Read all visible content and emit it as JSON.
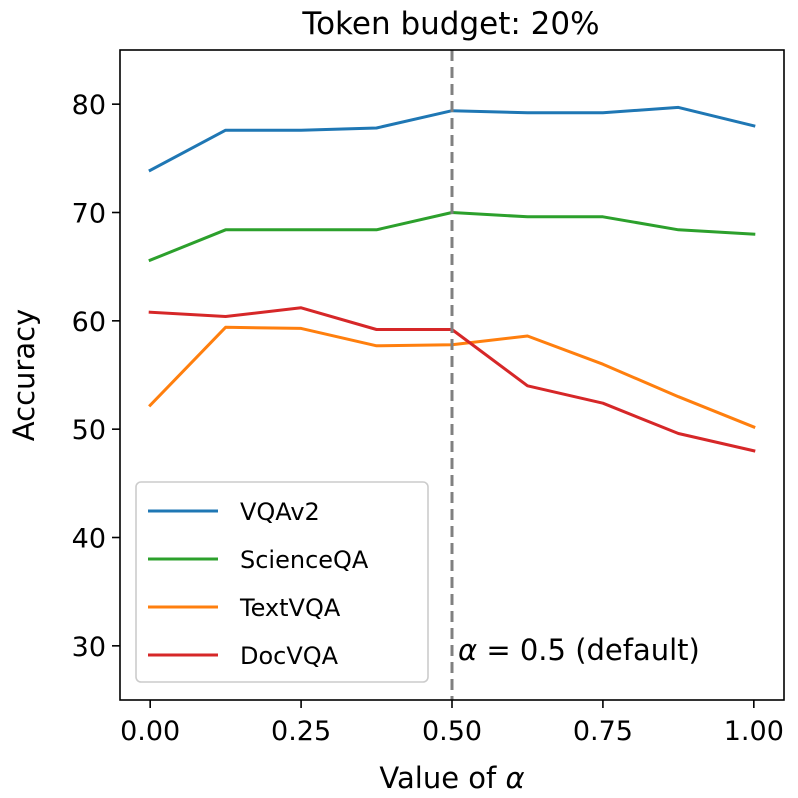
{
  "chart_data": {
    "type": "line",
    "title": "Token budget: 20%",
    "xlabel": "Value of α",
    "ylabel": "Accuracy",
    "x": [
      0.0,
      0.125,
      0.25,
      0.375,
      0.5,
      0.625,
      0.75,
      0.875,
      1.0
    ],
    "xlim": [
      -0.05,
      1.05
    ],
    "ylim": [
      25,
      85
    ],
    "xticks": [
      0.0,
      0.25,
      0.5,
      0.75,
      1.0
    ],
    "xtick_labels": [
      "0.00",
      "0.25",
      "0.50",
      "0.75",
      "1.00"
    ],
    "yticks": [
      30,
      40,
      50,
      60,
      70,
      80
    ],
    "ytick_labels": [
      "30",
      "40",
      "50",
      "60",
      "70",
      "80"
    ],
    "grid": false,
    "legend_position": "lower-left",
    "series": [
      {
        "name": "VQAv2",
        "color": "#1f77b4",
        "values": [
          73.9,
          77.6,
          77.6,
          77.8,
          79.4,
          79.2,
          79.2,
          79.7,
          78.0
        ]
      },
      {
        "name": "ScienceQA",
        "color": "#2ca02c",
        "values": [
          65.6,
          68.4,
          68.4,
          68.4,
          70.0,
          69.6,
          69.6,
          68.4,
          68.0
        ]
      },
      {
        "name": "TextVQA",
        "color": "#ff7f0e",
        "values": [
          52.2,
          59.4,
          59.3,
          57.7,
          57.8,
          58.6,
          56.0,
          53.0,
          50.2
        ]
      },
      {
        "name": "DocVQA",
        "color": "#d62728",
        "values": [
          60.8,
          60.4,
          61.2,
          59.2,
          59.2,
          54.0,
          52.4,
          49.6,
          48.0
        ]
      }
    ],
    "reference_line": {
      "x": 0.5,
      "style": "dashed",
      "color": "#808080",
      "label_prefix": "α",
      "label_rest": " = 0.5 (default)"
    }
  }
}
